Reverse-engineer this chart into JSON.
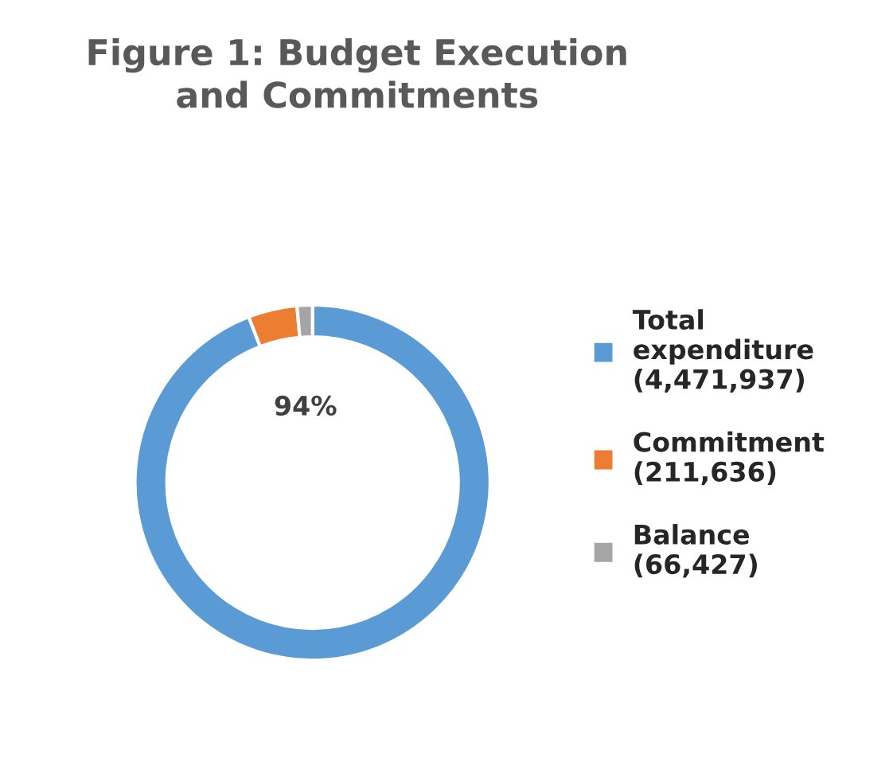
{
  "chart_data": {
    "type": "donut",
    "title": "Figure 1: Budget Execution and Commitments",
    "categories": [
      "Total expenditure (4,471,937)",
      "Commitment (211,636)",
      "Balance (66,427)"
    ],
    "values": [
      4471937,
      211636,
      66427
    ],
    "colors": [
      "#5b9bd5",
      "#ed7d31",
      "#a5a5a5"
    ],
    "annotations": [
      "94%"
    ],
    "legend": "right"
  }
}
